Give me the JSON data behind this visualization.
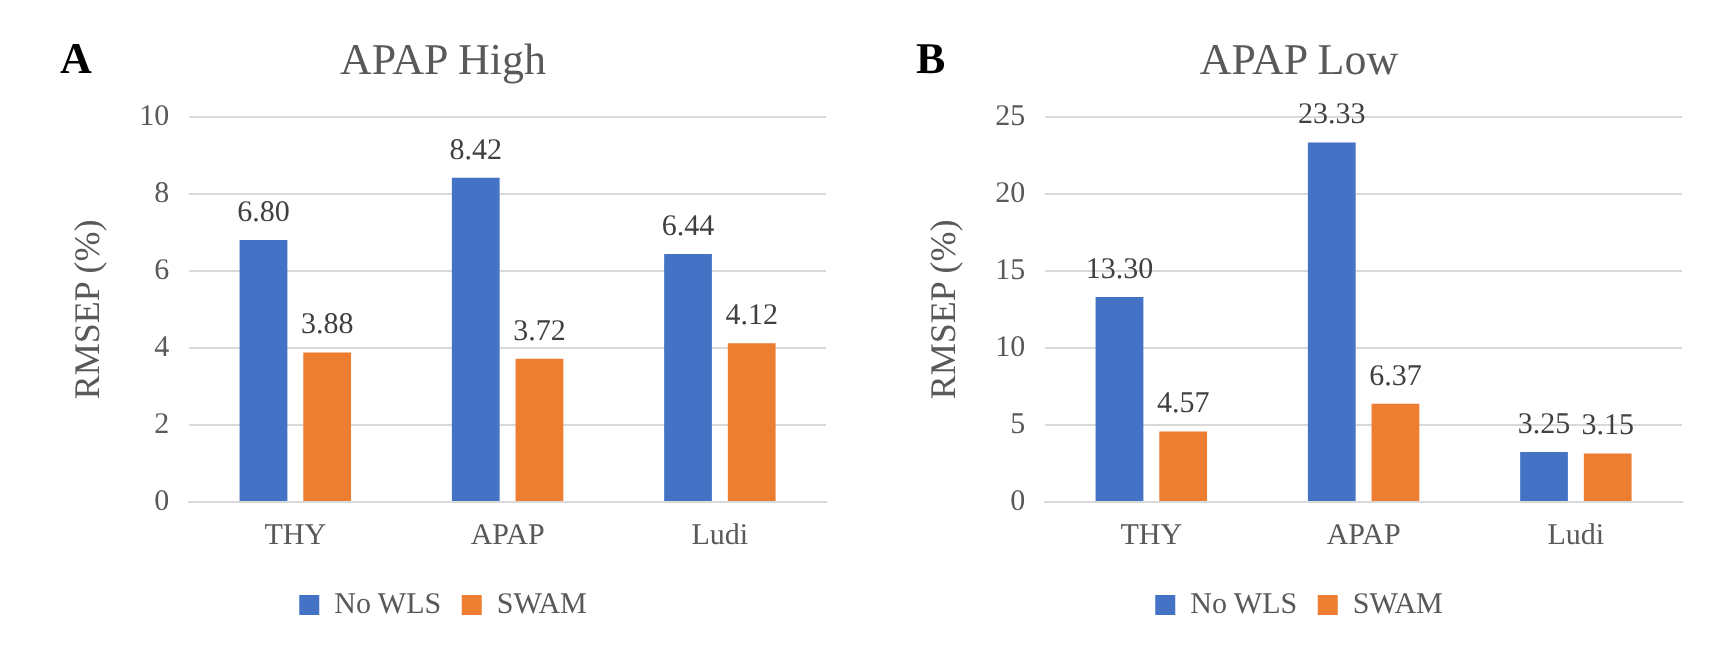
{
  "chart_data": [
    {
      "type": "bar",
      "title": "APAP High",
      "ylabel": "RMSEP (%)",
      "annotations": [
        "A"
      ],
      "categories": [
        "THY",
        "APAP",
        "Ludi"
      ],
      "series": [
        {
          "name": "No WLS",
          "color": "#4472c4",
          "values": [
            6.8,
            8.42,
            6.44
          ],
          "value_labels": [
            "6.80",
            "8.42",
            "6.44"
          ]
        },
        {
          "name": "SWAM",
          "color": "#ed7d31",
          "values": [
            3.88,
            3.72,
            4.12
          ],
          "value_labels": [
            "3.88",
            "3.72",
            "4.12"
          ]
        }
      ],
      "ylim": [
        0,
        10
      ],
      "yticks": [
        0,
        2,
        4,
        6,
        8,
        10
      ],
      "grid": "y",
      "legend": "bottom"
    },
    {
      "type": "bar",
      "title": "APAP Low",
      "ylabel": "RMSEP (%)",
      "annotations": [
        "B"
      ],
      "categories": [
        "THY",
        "APAP",
        "Ludi"
      ],
      "series": [
        {
          "name": "No WLS",
          "color": "#4472c4",
          "values": [
            13.3,
            23.33,
            3.25
          ],
          "value_labels": [
            "13.30",
            "23.33",
            "3.25"
          ]
        },
        {
          "name": "SWAM",
          "color": "#ed7d31",
          "values": [
            4.57,
            6.37,
            3.15
          ],
          "value_labels": [
            "4.57",
            "6.37",
            "3.15"
          ]
        }
      ],
      "ylim": [
        0,
        25
      ],
      "yticks": [
        0,
        5,
        10,
        15,
        20,
        25
      ],
      "grid": "y",
      "legend": "bottom"
    }
  ]
}
